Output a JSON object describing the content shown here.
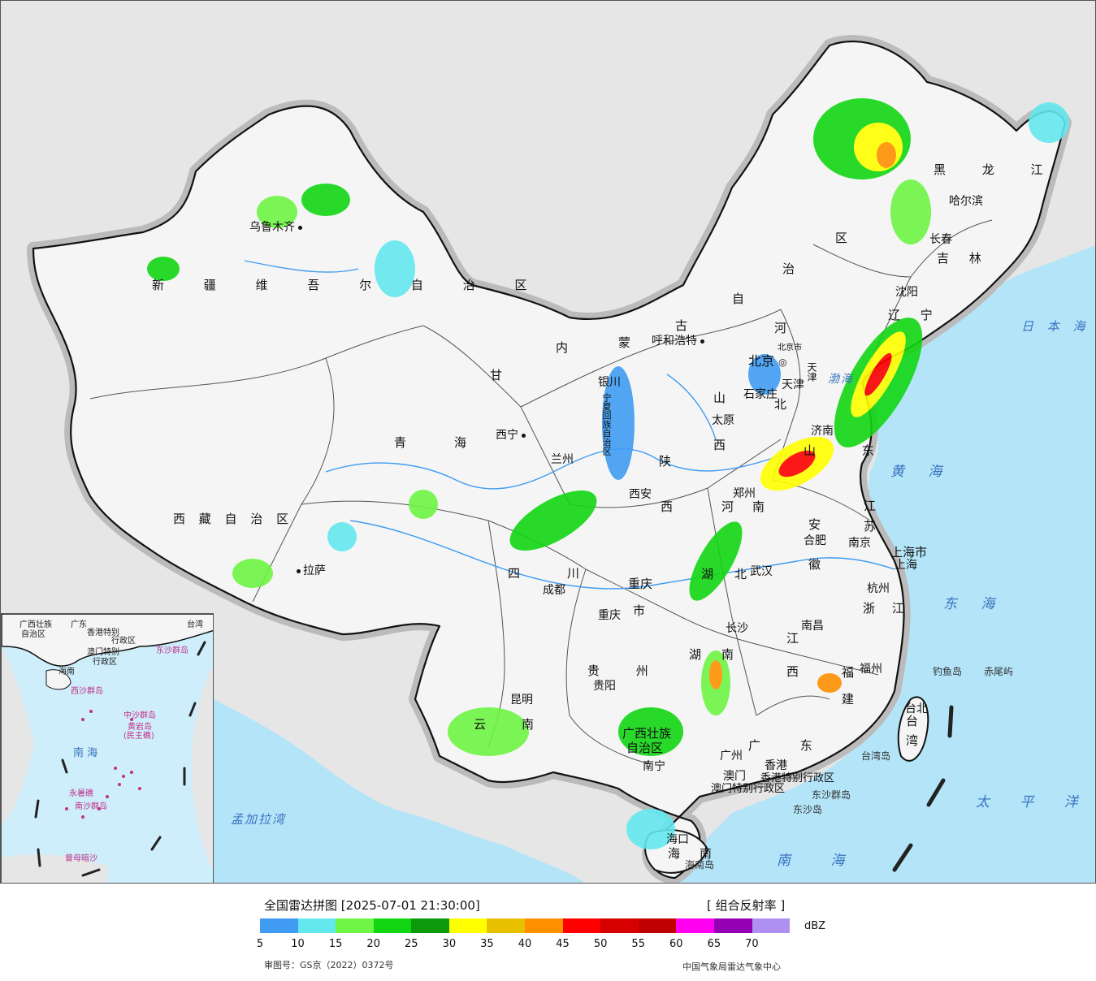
{
  "map": {
    "provinces": [
      "新疆维吾尔自治区",
      "西藏自治区",
      "青海",
      "甘肃",
      "内蒙古自治区",
      "四川",
      "云南",
      "黑龙江",
      "吉林",
      "辽宁",
      "河北",
      "山西",
      "陕西",
      "河南",
      "山东",
      "江苏",
      "安徽",
      "湖北",
      "湖南",
      "江西",
      "浙江",
      "福建",
      "广东",
      "广西壮族自治区",
      "贵州",
      "重庆市",
      "宁夏",
      "上海市",
      "北京市",
      "海南",
      "台湾"
    ],
    "labels": {
      "xinjiang": "新 疆 维 吾 尔 自 治 区",
      "xizang": "西 藏 自 治 区",
      "qinghai_a": "青",
      "qinghai_b": "海",
      "gansu": "甘",
      "nei": "内",
      "meng": "蒙",
      "gu": "古",
      "zi": "自",
      "zhi": "治",
      "qu": "区",
      "sichuan_a": "四",
      "sichuan_b": "川",
      "yunnan_a": "云",
      "yunnan_b": "南",
      "heilongjiang": "黑 龙 江",
      "jilin": "吉 林",
      "liaoning": "辽 宁",
      "hebei_a": "河",
      "hebei_b": "北",
      "shanxi_a": "山",
      "shanxi_b": "西",
      "shaanxi_a": "陕",
      "shaanxi_b": "西",
      "henan_a": "河",
      "henan_b": "南",
      "shandong": "山 东",
      "jiangsu_a": "江",
      "jiangsu_b": "苏",
      "anhui_a": "安",
      "anhui_b": "徽",
      "hubei_a": "湖",
      "hubei_b": "北",
      "hunan_a": "湖",
      "hunan_b": "南",
      "jiangxi_a": "江",
      "jiangxi_b": "西",
      "zhejiang": "浙 江",
      "fujian_a": "福",
      "fujian_b": "建",
      "guangdong": "广 东",
      "guangxi_a": "广西壮族",
      "guangxi_b": "自治区",
      "guizhou": "贵 州",
      "chongqing_a": "重庆",
      "chongqing_b": "市",
      "ningxia": "宁夏回族自治区",
      "shanghai": "上海市",
      "hainan_a": "海",
      "hainan_b": "南",
      "taiwan_a": "台",
      "taiwan_b": "湾",
      "tianjin": "天津",
      "hk": "香港特别行政区",
      "macau": "澳门特别行政区",
      "xianggang": "香港"
    },
    "cities": {
      "urumqi": "乌鲁木齐",
      "lhasa": "拉萨",
      "xining": "西宁",
      "lanzhou": "兰州",
      "yinchuan": "银川",
      "hohhot": "呼和浩特",
      "beijing": "北京",
      "tianjin": "天津",
      "shijiazhuang": "石家庄",
      "taiyuan": "太原",
      "xian": "西安",
      "zhengzhou": "郑州",
      "jinan": "济南",
      "chengdu": "成都",
      "chongqing": "重庆",
      "wuhan": "武汉",
      "hefei": "合肥",
      "nanjing": "南京",
      "shanghai": "上海",
      "hangzhou": "杭州",
      "nanchang": "南昌",
      "changsha": "长沙",
      "guiyang": "贵阳",
      "kunming": "昆明",
      "nanning": "南宁",
      "guangzhou": "广州",
      "aomen": "澳门",
      "fuzhou": "福州",
      "taibei": "台北",
      "haikou": "海口",
      "harbin": "哈尔滨",
      "changchun": "长春",
      "shenyang": "沈阳",
      "beijing_small": "北京市"
    },
    "seas": {
      "bohai": "渤海",
      "huanghai": "黄 海",
      "donghai": "东 海",
      "nanhai": "南 海",
      "taipingyang": "太 平 洋",
      "ribenhai": "日 本 海",
      "mengjiala": "孟加拉湾"
    },
    "islands": {
      "diaoyu": "钓鱼岛",
      "chiwei": "赤尾屿",
      "taiwandao": "台湾岛",
      "dongsha_qd": "东沙群岛",
      "dongsha_d": "东沙岛",
      "hainandao": "海南岛"
    }
  },
  "inset": {
    "labels": {
      "l1": "广东",
      "l2": "香港特别",
      "l3": "行政区",
      "l4": "澳门特别",
      "l5": "行政区",
      "l6": "台湾",
      "l7": "东沙群岛",
      "l8": "海南",
      "l9": "西沙群岛",
      "l10": "中沙群岛",
      "l11": "黄岩岛",
      "l12": "(民主礁)",
      "l13": "南 海",
      "l14": "永暑礁",
      "l15": "南沙群岛",
      "l16": "曾母暗沙",
      "l17": "广西壮族",
      "l18": "自治区"
    }
  },
  "legend": {
    "title": "全国雷达拼图 [2025-07-01 21:30:00]",
    "product": "[ 组合反射率 ]",
    "unit": "dBZ",
    "approval": "审图号：GS京（2022）0372号",
    "source": "中国气象局雷达气象中心",
    "ticks": [
      "5",
      "10",
      "15",
      "20",
      "25",
      "30",
      "35",
      "40",
      "45",
      "50",
      "55",
      "60",
      "65",
      "70"
    ],
    "colors": [
      "#3f9cf2",
      "#63e8ee",
      "#6ef545",
      "#12d612",
      "#0a9a0a",
      "#ffff00",
      "#e7c000",
      "#ff9000",
      "#ff0000",
      "#d70000",
      "#c00000",
      "#ff00f0",
      "#9600b4",
      "#ad90f0"
    ]
  }
}
